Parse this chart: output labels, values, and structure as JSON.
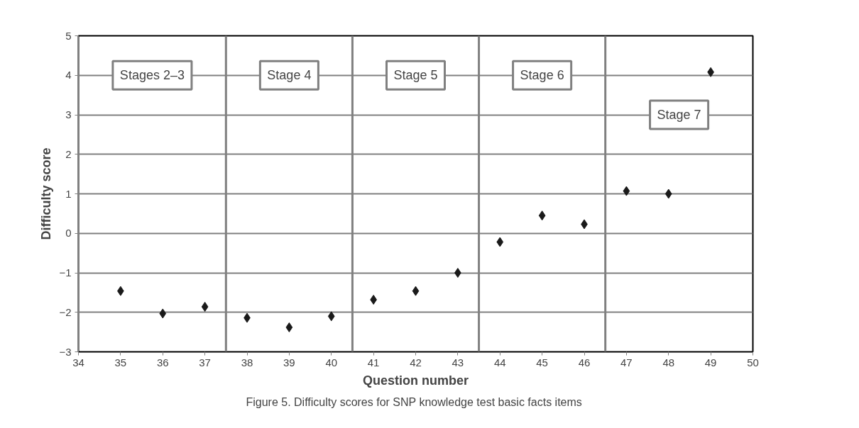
{
  "chart_data": {
    "type": "scatter",
    "xlabel": "Question number",
    "ylabel": "Difficulty score",
    "x": [
      35,
      36,
      37,
      38,
      39,
      40,
      41,
      42,
      43,
      44,
      45,
      46,
      47,
      48,
      49
    ],
    "series": [
      {
        "color": "#1a1a1a",
        "values": [
          -1.46,
          -2.03,
          -1.86,
          -2.14,
          -2.38,
          -2.1,
          -1.68,
          -1.46,
          -1.0,
          -0.22,
          0.45,
          0.23,
          1.07,
          1.0,
          4.08
        ]
      }
    ],
    "xlim": [
      34,
      50
    ],
    "ylim": [
      -3,
      5
    ],
    "xticks": [
      34,
      35,
      36,
      37,
      38,
      39,
      40,
      41,
      42,
      43,
      44,
      45,
      46,
      47,
      48,
      49,
      50
    ],
    "yticks": [
      -3,
      -2,
      -1,
      0,
      1,
      2,
      3,
      4,
      5
    ],
    "grid": "y",
    "marker": "diamond",
    "ref_lines": [
      {
        "axis": "x",
        "value": 37.5,
        "color": "#808080"
      },
      {
        "axis": "x",
        "value": 40.5,
        "color": "#808080"
      },
      {
        "axis": "x",
        "value": 43.5,
        "color": "#808080"
      },
      {
        "axis": "x",
        "value": 46.5,
        "color": "#808080"
      }
    ],
    "annotations": [
      "Stages 2–3",
      "Stage 4",
      "Stage 5",
      "Stage 6",
      "Stage 7",
      "Figure 5.  Difficulty scores for SNP knowledge test basic facts items"
    ]
  }
}
